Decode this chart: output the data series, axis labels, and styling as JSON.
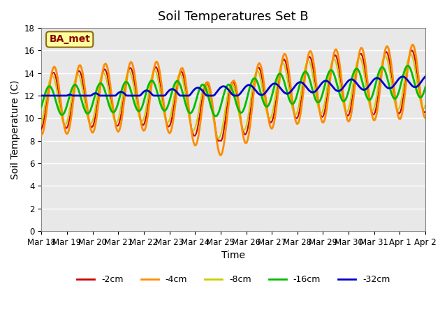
{
  "title": "Soil Temperatures Set B",
  "xlabel": "Time",
  "ylabel": "Soil Temperature (C)",
  "ylim": [
    0,
    18
  ],
  "yticks": [
    0,
    2,
    4,
    6,
    8,
    10,
    12,
    14,
    16,
    18
  ],
  "x_labels": [
    "Mar 18",
    "Mar 19",
    "Mar 20",
    "Mar 21",
    "Mar 22",
    "Mar 23",
    "Mar 24",
    "Mar 25",
    "Mar 26",
    "Mar 27",
    "Mar 28",
    "Mar 29",
    "Mar 30",
    "Mar 31",
    "Apr 1",
    "Apr 2"
  ],
  "x_tick_pos": [
    0,
    1,
    2,
    3,
    4,
    5,
    6,
    7,
    8,
    9,
    10,
    11,
    12,
    13,
    14,
    15
  ],
  "annotation_text": "BA_met",
  "annotation_color": "#8B0000",
  "annotation_bg": "#FFFF99",
  "line_colors": {
    "2cm": "#CC0000",
    "4cm": "#FF8C00",
    "8cm": "#CCCC00",
    "16cm": "#00BB00",
    "32cm": "#0000CC"
  },
  "line_widths": {
    "2cm": 1.5,
    "4cm": 2.0,
    "8cm": 1.5,
    "16cm": 2.0,
    "32cm": 2.0
  },
  "plot_bg": "#E8E8E8",
  "grid_color": "white",
  "title_fontsize": 13,
  "label_fontsize": 10,
  "tick_fontsize": 8.5,
  "n_points": 336,
  "days": 15
}
